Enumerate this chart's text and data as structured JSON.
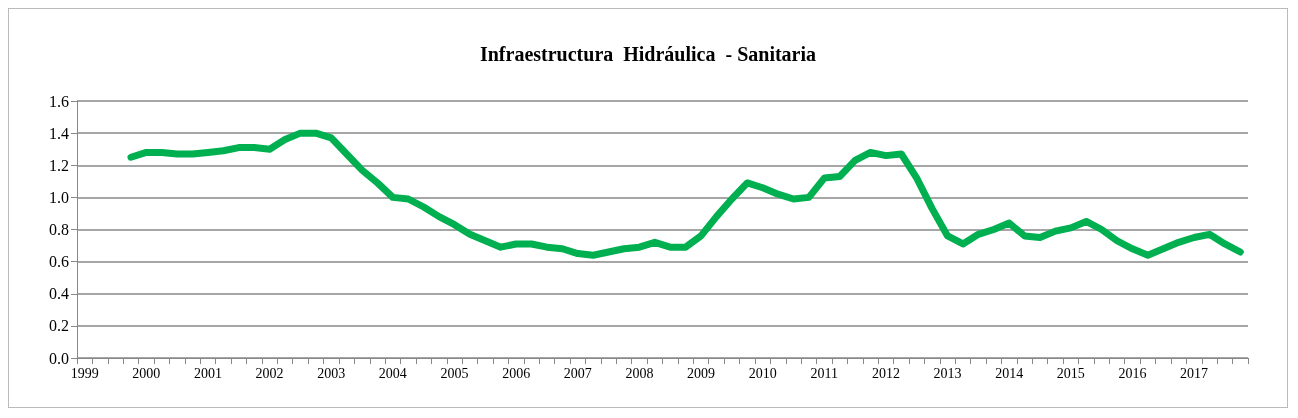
{
  "chart_data": {
    "type": "line",
    "title": "Infraestructura  Hidráulica  - Sanitaria",
    "categories": [
      "1999",
      null,
      null,
      null,
      "2000",
      null,
      null,
      null,
      "2001",
      null,
      null,
      null,
      "2002",
      null,
      null,
      null,
      "2003",
      null,
      null,
      null,
      "2004",
      null,
      null,
      null,
      "2005",
      null,
      null,
      null,
      "2006",
      null,
      null,
      null,
      "2007",
      null,
      null,
      null,
      "2008",
      null,
      null,
      null,
      "2009",
      null,
      null,
      null,
      "2010",
      null,
      null,
      null,
      "2011",
      null,
      null,
      null,
      "2012",
      null,
      null,
      null,
      "2013",
      null,
      null,
      null,
      "2014",
      null,
      null,
      null,
      "2015",
      null,
      null,
      null,
      "2016",
      null,
      null,
      null,
      "2017",
      null,
      null,
      null
    ],
    "series": [
      {
        "color": "#00b050",
        "values": [
          null,
          null,
          null,
          1.25,
          1.28,
          1.28,
          1.27,
          1.27,
          1.28,
          1.29,
          1.31,
          1.31,
          1.3,
          1.36,
          1.4,
          1.4,
          1.37,
          1.27,
          1.17,
          1.09,
          1.0,
          0.99,
          0.94,
          0.88,
          0.83,
          0.77,
          0.73,
          0.69,
          0.71,
          0.71,
          0.69,
          0.68,
          0.65,
          0.64,
          0.66,
          0.68,
          0.69,
          0.72,
          0.69,
          0.69,
          0.76,
          0.88,
          0.99,
          1.09,
          1.06,
          1.02,
          0.99,
          1.0,
          1.12,
          1.13,
          1.23,
          1.28,
          1.26,
          1.27,
          1.12,
          0.93,
          0.76,
          0.71,
          0.77,
          0.8,
          0.84,
          0.76,
          0.75,
          0.79,
          0.81,
          0.85,
          0.8,
          0.73,
          0.68,
          0.64,
          0.68,
          0.72,
          0.75,
          0.77,
          0.71,
          0.66
        ]
      }
    ],
    "ylim": [
      0,
      1.6
    ],
    "yticks": [
      {
        "value": 0,
        "label": "0.0"
      },
      0.2,
      0.4,
      0.6,
      0.8,
      {
        "value": 1,
        "label": "1.0"
      },
      1.2,
      1.4,
      1.6
    ],
    "grid": "y",
    "marker": "none",
    "line_style": "solid"
  }
}
